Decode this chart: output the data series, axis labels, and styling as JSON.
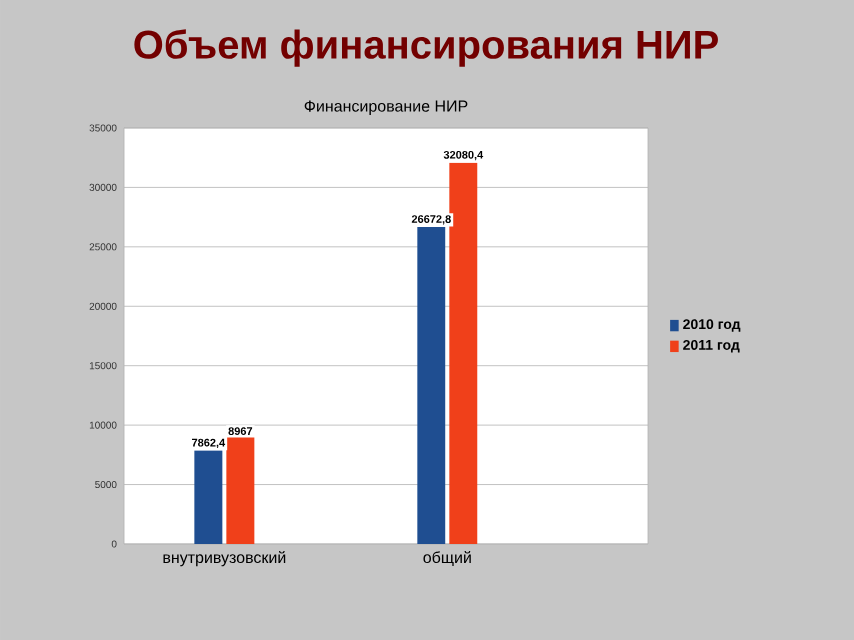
{
  "chart_data": {
    "type": "bar",
    "title": "Объем финансирования НИР",
    "subtitle": "Финансирование НИР",
    "categories": [
      "внутривузовский",
      "общий"
    ],
    "series": [
      {
        "name": "2010 год",
        "color": "#1f4e91",
        "values": [
          7862.4,
          26672.8
        ],
        "value_labels": [
          "7862,4",
          "26672,8"
        ]
      },
      {
        "name": "2011 год",
        "color": "#f0401a",
        "values": [
          8967,
          32080.4
        ],
        "value_labels": [
          "8967",
          "32080,4"
        ]
      }
    ],
    "ylim": [
      0,
      35000
    ],
    "yticks": [
      0,
      5000,
      10000,
      15000,
      20000,
      25000,
      30000,
      35000
    ],
    "grid": "y",
    "legend": "right"
  }
}
